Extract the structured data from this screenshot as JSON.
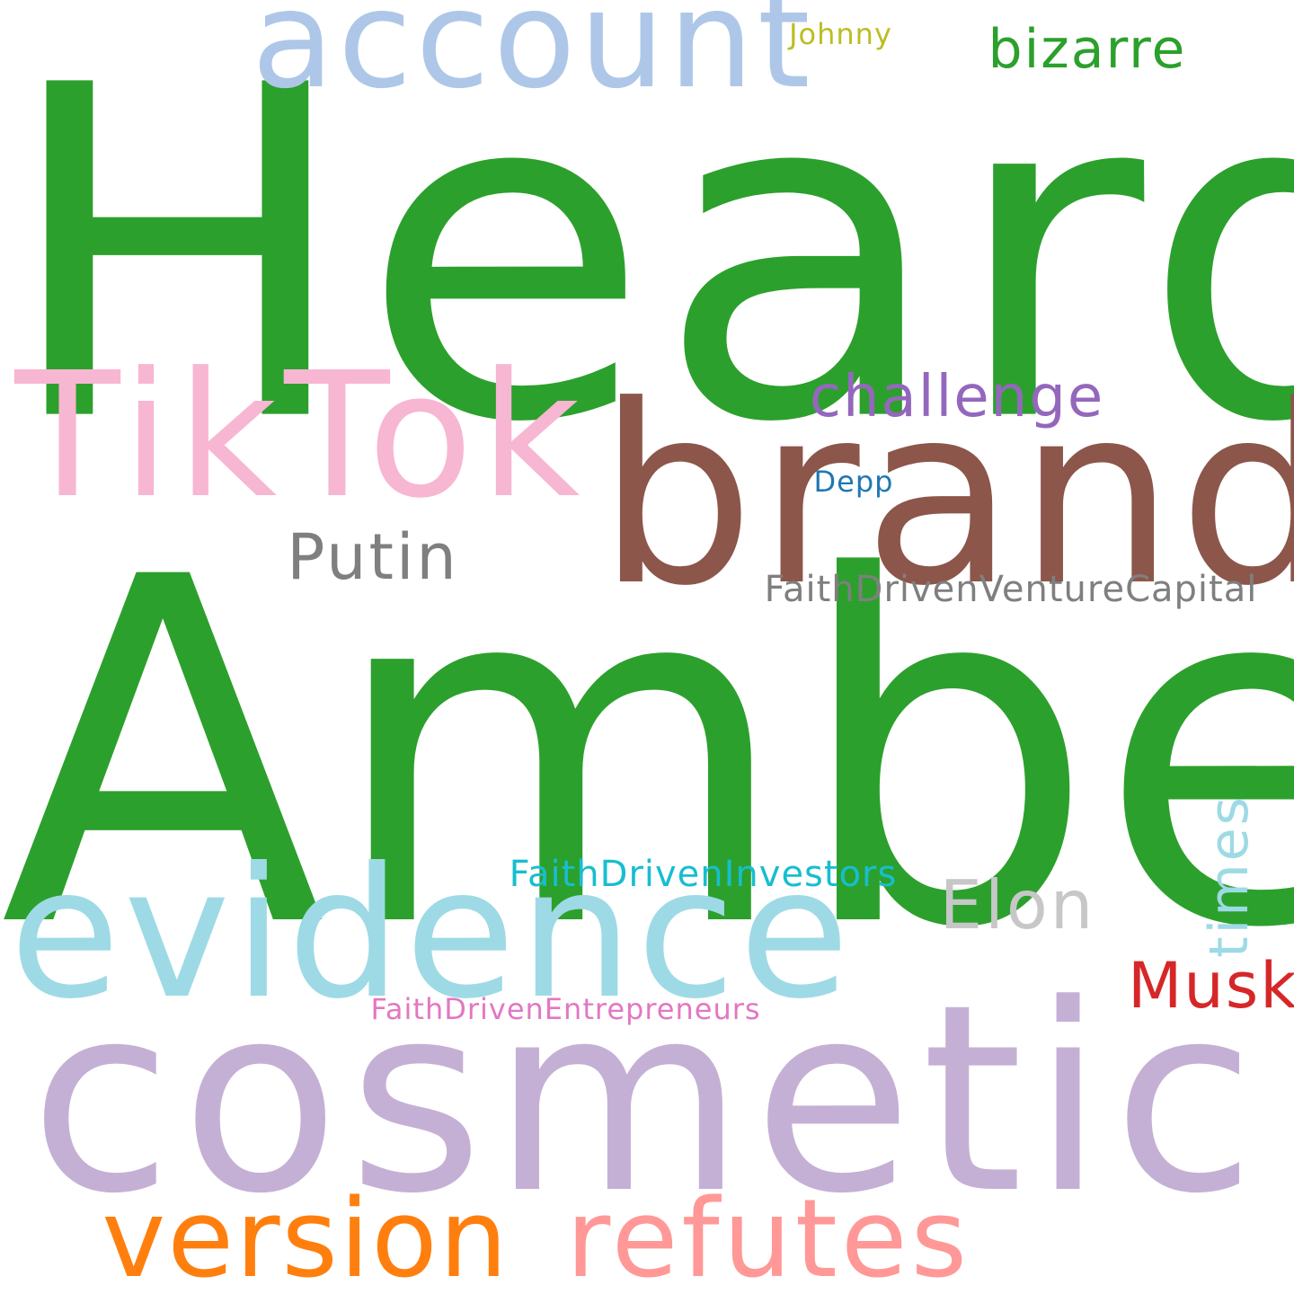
{
  "word_cloud": {
    "words": [
      {
        "text": "Heard",
        "color": "#2ca02c"
      },
      {
        "text": "Amber",
        "color": "#2ca02c"
      },
      {
        "text": "cosmetic",
        "color": "#c5b0d5"
      },
      {
        "text": "brand",
        "color": "#8c564b"
      },
      {
        "text": "evidence",
        "color": "#9edae5"
      },
      {
        "text": "TikTok",
        "color": "#f7b6d2"
      },
      {
        "text": "account",
        "color": "#aec7e8"
      },
      {
        "text": "version",
        "color": "#ff7f0e"
      },
      {
        "text": "refutes",
        "color": "#ff9896"
      },
      {
        "text": "challenge",
        "color": "#9467bd"
      },
      {
        "text": "bizarre",
        "color": "#2ca02c"
      },
      {
        "text": "Putin",
        "color": "#7f7f7f"
      },
      {
        "text": "Elon",
        "color": "#c7c7c7"
      },
      {
        "text": "Musk",
        "color": "#d62728"
      },
      {
        "text": "FaithDrivenVentureCapital",
        "color": "#7f7f7f"
      },
      {
        "text": "FaithDrivenInvestors",
        "color": "#17becf"
      },
      {
        "text": "FaithDrivenEntrepreneurs",
        "color": "#e377c2"
      },
      {
        "text": "Depp",
        "color": "#1f77b4"
      },
      {
        "text": "Johnny",
        "color": "#bcbd22"
      },
      {
        "text": "times",
        "color": "#9edae5"
      }
    ]
  }
}
